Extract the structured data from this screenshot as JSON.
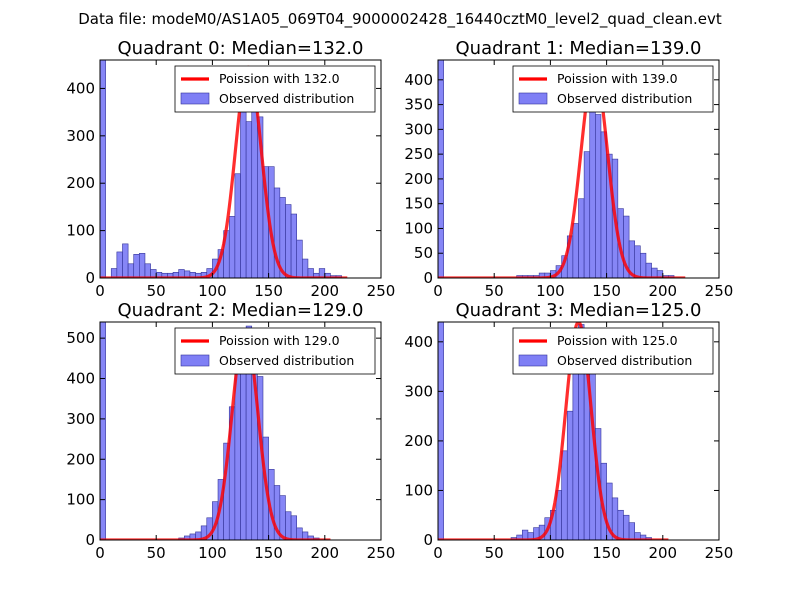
{
  "figure": {
    "suptitle": "Data file: modeM0/AS1A05_069T04_9000002428_16440cztM0_level2_quad_clean.evt"
  },
  "colors": {
    "bar_fill": "#7f7ff5",
    "bar_edge": "#333399",
    "fit_line": "#ff0000",
    "axes": "#000000",
    "background": "#ffffff"
  },
  "chart_data": [
    {
      "type": "bar",
      "title": "Quadrant 0: Median=132.0",
      "fit_label": "Poission with 132.0",
      "hist_label": "Observed distribution",
      "mean": 132.0,
      "xlim": [
        0,
        250
      ],
      "ylim": [
        0,
        460
      ],
      "xticks": [
        0,
        50,
        100,
        150,
        200,
        250
      ],
      "yticks": [
        0,
        100,
        200,
        300,
        400
      ],
      "bin_width": 5,
      "legend_position": "top-right",
      "bins": [
        [
          0,
          460
        ],
        [
          5,
          0
        ],
        [
          10,
          20
        ],
        [
          15,
          55
        ],
        [
          20,
          72
        ],
        [
          25,
          30
        ],
        [
          30,
          50
        ],
        [
          35,
          52
        ],
        [
          40,
          30
        ],
        [
          45,
          18
        ],
        [
          50,
          12
        ],
        [
          55,
          10
        ],
        [
          60,
          10
        ],
        [
          65,
          12
        ],
        [
          70,
          18
        ],
        [
          75,
          15
        ],
        [
          80,
          12
        ],
        [
          85,
          10
        ],
        [
          90,
          12
        ],
        [
          95,
          20
        ],
        [
          100,
          40
        ],
        [
          105,
          60
        ],
        [
          110,
          100
        ],
        [
          115,
          130
        ],
        [
          120,
          220
        ],
        [
          125,
          350
        ],
        [
          130,
          330
        ],
        [
          135,
          395
        ],
        [
          140,
          340
        ],
        [
          145,
          235
        ],
        [
          150,
          235
        ],
        [
          155,
          190
        ],
        [
          160,
          170
        ],
        [
          165,
          155
        ],
        [
          170,
          135
        ],
        [
          175,
          80
        ],
        [
          180,
          40
        ],
        [
          185,
          20
        ],
        [
          190,
          10
        ],
        [
          195,
          20
        ],
        [
          200,
          10
        ],
        [
          205,
          5
        ],
        [
          210,
          5
        ]
      ],
      "curve_peak": 445,
      "curve_sigma": 11.5,
      "curve_xmax": 220
    },
    {
      "type": "bar",
      "title": "Quadrant 1: Median=139.0",
      "fit_label": "Poission with 139.0",
      "hist_label": "Observed distribution",
      "mean": 139.0,
      "xlim": [
        0,
        250
      ],
      "ylim": [
        0,
        440
      ],
      "xticks": [
        0,
        50,
        100,
        150,
        200,
        250
      ],
      "yticks": [
        0,
        50,
        100,
        150,
        200,
        250,
        300,
        350,
        400
      ],
      "bin_width": 5,
      "legend_position": "top-right",
      "bins": [
        [
          0,
          440
        ],
        [
          5,
          0
        ],
        [
          10,
          0
        ],
        [
          15,
          0
        ],
        [
          20,
          0
        ],
        [
          25,
          0
        ],
        [
          30,
          0
        ],
        [
          35,
          0
        ],
        [
          40,
          0
        ],
        [
          45,
          0
        ],
        [
          50,
          0
        ],
        [
          55,
          0
        ],
        [
          60,
          0
        ],
        [
          65,
          0
        ],
        [
          70,
          5
        ],
        [
          75,
          5
        ],
        [
          80,
          5
        ],
        [
          85,
          5
        ],
        [
          90,
          10
        ],
        [
          95,
          10
        ],
        [
          100,
          15
        ],
        [
          105,
          25
        ],
        [
          110,
          45
        ],
        [
          115,
          85
        ],
        [
          120,
          110
        ],
        [
          125,
          160
        ],
        [
          130,
          255
        ],
        [
          135,
          360
        ],
        [
          140,
          330
        ],
        [
          145,
          295
        ],
        [
          150,
          250
        ],
        [
          155,
          240
        ],
        [
          160,
          140
        ],
        [
          165,
          125
        ],
        [
          170,
          75
        ],
        [
          175,
          65
        ],
        [
          180,
          50
        ],
        [
          185,
          30
        ],
        [
          190,
          20
        ],
        [
          195,
          15
        ],
        [
          200,
          5
        ],
        [
          205,
          5
        ]
      ],
      "curve_peak": 420,
      "curve_sigma": 11.8,
      "curve_xmax": 220
    },
    {
      "type": "bar",
      "title": "Quadrant 2: Median=129.0",
      "fit_label": "Poission with 129.0",
      "hist_label": "Observed distribution",
      "mean": 129.0,
      "xlim": [
        0,
        250
      ],
      "ylim": [
        0,
        540
      ],
      "xticks": [
        0,
        50,
        100,
        150,
        200,
        250
      ],
      "yticks": [
        0,
        100,
        200,
        300,
        400,
        500
      ],
      "bin_width": 5,
      "legend_position": "top-right",
      "bins": [
        [
          0,
          540
        ],
        [
          5,
          0
        ],
        [
          10,
          0
        ],
        [
          15,
          0
        ],
        [
          20,
          0
        ],
        [
          25,
          0
        ],
        [
          30,
          0
        ],
        [
          35,
          0
        ],
        [
          40,
          0
        ],
        [
          45,
          0
        ],
        [
          50,
          0
        ],
        [
          55,
          0
        ],
        [
          60,
          0
        ],
        [
          65,
          0
        ],
        [
          70,
          5
        ],
        [
          75,
          10
        ],
        [
          80,
          15
        ],
        [
          85,
          20
        ],
        [
          90,
          35
        ],
        [
          95,
          55
        ],
        [
          100,
          95
        ],
        [
          105,
          150
        ],
        [
          110,
          240
        ],
        [
          115,
          330
        ],
        [
          120,
          430
        ],
        [
          125,
          465
        ],
        [
          130,
          530
        ],
        [
          135,
          455
        ],
        [
          140,
          405
        ],
        [
          145,
          255
        ],
        [
          150,
          175
        ],
        [
          155,
          135
        ],
        [
          160,
          110
        ],
        [
          165,
          70
        ],
        [
          170,
          60
        ],
        [
          175,
          30
        ],
        [
          180,
          20
        ],
        [
          185,
          10
        ],
        [
          190,
          5
        ]
      ],
      "curve_peak": 520,
      "curve_sigma": 11.5,
      "curve_xmax": 205
    },
    {
      "type": "bar",
      "title": "Quadrant 3: Median=125.0",
      "fit_label": "Poission with 125.0",
      "hist_label": "Observed distribution",
      "mean": 125.0,
      "xlim": [
        0,
        250
      ],
      "ylim": [
        0,
        440
      ],
      "xticks": [
        0,
        50,
        100,
        150,
        200,
        250
      ],
      "yticks": [
        0,
        100,
        200,
        300,
        400
      ],
      "bin_width": 5,
      "legend_position": "top-right",
      "bins": [
        [
          0,
          440
        ],
        [
          5,
          0
        ],
        [
          10,
          0
        ],
        [
          15,
          0
        ],
        [
          20,
          0
        ],
        [
          25,
          0
        ],
        [
          30,
          0
        ],
        [
          35,
          0
        ],
        [
          40,
          0
        ],
        [
          45,
          0
        ],
        [
          50,
          0
        ],
        [
          55,
          0
        ],
        [
          60,
          0
        ],
        [
          65,
          5
        ],
        [
          70,
          10
        ],
        [
          75,
          20
        ],
        [
          80,
          15
        ],
        [
          85,
          25
        ],
        [
          90,
          30
        ],
        [
          95,
          45
        ],
        [
          100,
          60
        ],
        [
          105,
          100
        ],
        [
          110,
          180
        ],
        [
          115,
          260
        ],
        [
          120,
          385
        ],
        [
          125,
          435
        ],
        [
          130,
          415
        ],
        [
          135,
          385
        ],
        [
          140,
          225
        ],
        [
          145,
          155
        ],
        [
          150,
          115
        ],
        [
          155,
          85
        ],
        [
          160,
          60
        ],
        [
          165,
          50
        ],
        [
          170,
          35
        ],
        [
          175,
          15
        ],
        [
          180,
          10
        ],
        [
          185,
          5
        ]
      ],
      "curve_peak": 440,
      "curve_sigma": 11.2,
      "curve_xmax": 205
    }
  ]
}
